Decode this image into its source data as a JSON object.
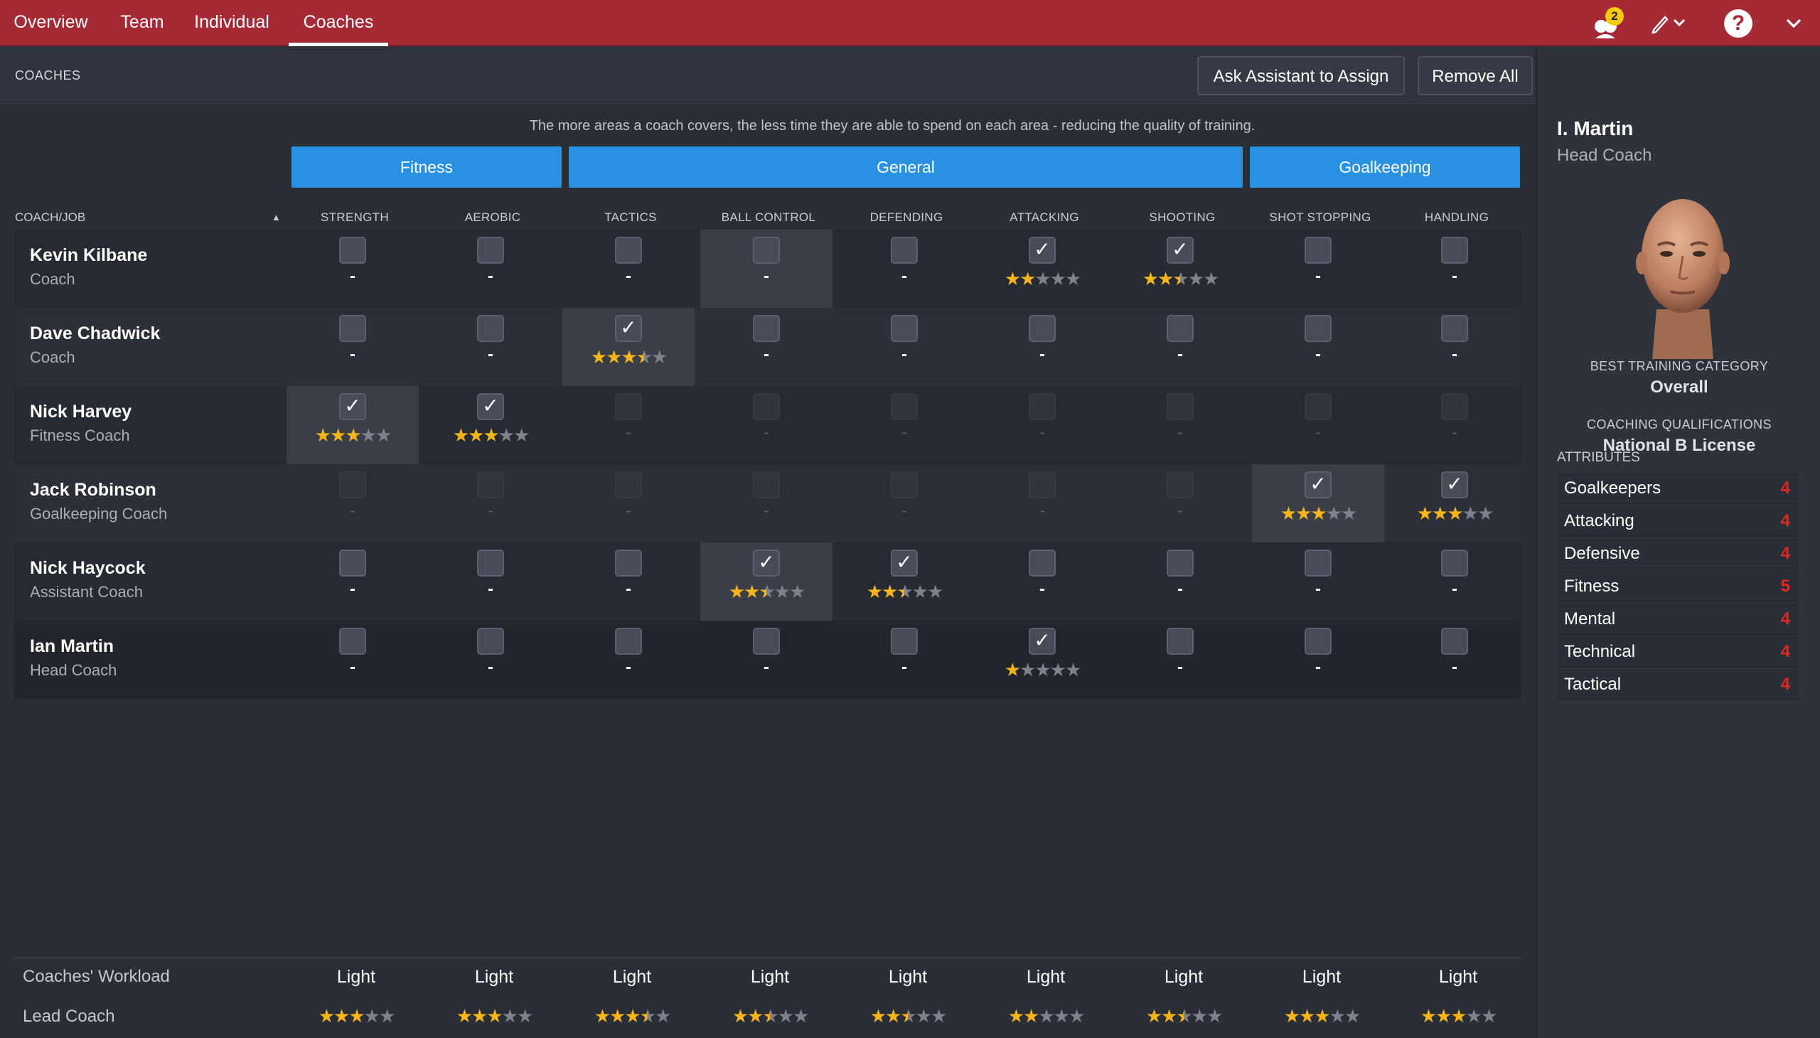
{
  "nav": {
    "tabs": [
      {
        "label": "Overview"
      },
      {
        "label": "Team"
      },
      {
        "label": "Individual"
      },
      {
        "label": "Coaches"
      }
    ],
    "active": "Coaches",
    "notification_count": "2"
  },
  "header": {
    "title": "COACHES",
    "ask_assistant_label": "Ask Assistant to Assign",
    "remove_all_label": "Remove All"
  },
  "notice": "The more areas a coach covers, the less time they are able to spend on each area - reducing the quality of training.",
  "groups": {
    "fitness": "Fitness",
    "general": "General",
    "goalkeeping": "Goalkeeping"
  },
  "table": {
    "coach_job_header": "COACH/JOB",
    "columns": [
      "STRENGTH",
      "AEROBIC",
      "TACTICS",
      "BALL CONTROL",
      "DEFENDING",
      "ATTACKING",
      "SHOOTING",
      "SHOT STOPPING",
      "HANDLING"
    ],
    "rows": [
      {
        "name": "Kevin Kilbane",
        "role": "Coach",
        "cells": [
          {
            "checked": false,
            "enabled": true,
            "stars": null,
            "dash": "-"
          },
          {
            "checked": false,
            "enabled": true,
            "stars": null,
            "dash": "-"
          },
          {
            "checked": false,
            "enabled": true,
            "stars": null,
            "dash": "-"
          },
          {
            "checked": false,
            "enabled": true,
            "stars": null,
            "dash": "-",
            "highlight": true
          },
          {
            "checked": false,
            "enabled": true,
            "stars": null,
            "dash": "-"
          },
          {
            "checked": true,
            "enabled": true,
            "stars": 2
          },
          {
            "checked": true,
            "enabled": true,
            "stars": 2.5
          },
          {
            "checked": false,
            "enabled": true,
            "stars": null,
            "dash": "-"
          },
          {
            "checked": false,
            "enabled": true,
            "stars": null,
            "dash": "-"
          }
        ]
      },
      {
        "name": "Dave Chadwick",
        "role": "Coach",
        "cells": [
          {
            "checked": false,
            "enabled": true,
            "stars": null,
            "dash": "-"
          },
          {
            "checked": false,
            "enabled": true,
            "stars": null,
            "dash": "-"
          },
          {
            "checked": true,
            "enabled": true,
            "stars": 3.5,
            "highlight": true
          },
          {
            "checked": false,
            "enabled": true,
            "stars": null,
            "dash": "-"
          },
          {
            "checked": false,
            "enabled": true,
            "stars": null,
            "dash": "-"
          },
          {
            "checked": false,
            "enabled": true,
            "stars": null,
            "dash": "-"
          },
          {
            "checked": false,
            "enabled": true,
            "stars": null,
            "dash": "-"
          },
          {
            "checked": false,
            "enabled": true,
            "stars": null,
            "dash": "-"
          },
          {
            "checked": false,
            "enabled": true,
            "stars": null,
            "dash": "-"
          }
        ]
      },
      {
        "name": "Nick Harvey",
        "role": "Fitness Coach",
        "cells": [
          {
            "checked": true,
            "enabled": true,
            "stars": 3,
            "highlight": true
          },
          {
            "checked": true,
            "enabled": true,
            "stars": 3
          },
          {
            "checked": false,
            "enabled": false,
            "stars": null,
            "dash": "-"
          },
          {
            "checked": false,
            "enabled": false,
            "stars": null,
            "dash": "-"
          },
          {
            "checked": false,
            "enabled": false,
            "stars": null,
            "dash": "-"
          },
          {
            "checked": false,
            "enabled": false,
            "stars": null,
            "dash": "-"
          },
          {
            "checked": false,
            "enabled": false,
            "stars": null,
            "dash": "-"
          },
          {
            "checked": false,
            "enabled": false,
            "stars": null,
            "dash": "-"
          },
          {
            "checked": false,
            "enabled": false,
            "stars": null,
            "dash": "-"
          }
        ]
      },
      {
        "name": "Jack Robinson",
        "role": "Goalkeeping Coach",
        "cells": [
          {
            "checked": false,
            "enabled": false,
            "stars": null,
            "dash": "-"
          },
          {
            "checked": false,
            "enabled": false,
            "stars": null,
            "dash": "-"
          },
          {
            "checked": false,
            "enabled": false,
            "stars": null,
            "dash": "-"
          },
          {
            "checked": false,
            "enabled": false,
            "stars": null,
            "dash": "-"
          },
          {
            "checked": false,
            "enabled": false,
            "stars": null,
            "dash": "-"
          },
          {
            "checked": false,
            "enabled": false,
            "stars": null,
            "dash": "-"
          },
          {
            "checked": false,
            "enabled": false,
            "stars": null,
            "dash": "-"
          },
          {
            "checked": true,
            "enabled": true,
            "stars": 3,
            "highlight": true
          },
          {
            "checked": true,
            "enabled": true,
            "stars": 3
          }
        ]
      },
      {
        "name": "Nick Haycock",
        "role": "Assistant Coach",
        "cells": [
          {
            "checked": false,
            "enabled": true,
            "stars": null,
            "dash": "-"
          },
          {
            "checked": false,
            "enabled": true,
            "stars": null,
            "dash": "-"
          },
          {
            "checked": false,
            "enabled": true,
            "stars": null,
            "dash": "-"
          },
          {
            "checked": true,
            "enabled": true,
            "stars": 2.5,
            "highlight": true
          },
          {
            "checked": true,
            "enabled": true,
            "stars": 2.5
          },
          {
            "checked": false,
            "enabled": true,
            "stars": null,
            "dash": "-"
          },
          {
            "checked": false,
            "enabled": true,
            "stars": null,
            "dash": "-"
          },
          {
            "checked": false,
            "enabled": true,
            "stars": null,
            "dash": "-"
          },
          {
            "checked": false,
            "enabled": true,
            "stars": null,
            "dash": "-"
          }
        ]
      },
      {
        "name": "Ian Martin",
        "role": "Head Coach",
        "cells": [
          {
            "checked": false,
            "enabled": true,
            "stars": null,
            "dash": "-"
          },
          {
            "checked": false,
            "enabled": true,
            "stars": null,
            "dash": "-"
          },
          {
            "checked": false,
            "enabled": true,
            "stars": null,
            "dash": "-"
          },
          {
            "checked": false,
            "enabled": true,
            "stars": null,
            "dash": "-"
          },
          {
            "checked": false,
            "enabled": true,
            "stars": null,
            "dash": "-"
          },
          {
            "checked": true,
            "enabled": true,
            "stars": 1
          },
          {
            "checked": false,
            "enabled": true,
            "stars": null,
            "dash": "-"
          },
          {
            "checked": false,
            "enabled": true,
            "stars": null,
            "dash": "-"
          },
          {
            "checked": false,
            "enabled": true,
            "stars": null,
            "dash": "-"
          }
        ]
      }
    ]
  },
  "footer": {
    "workload_label": "Coaches' Workload",
    "workload": [
      "Light",
      "Light",
      "Light",
      "Light",
      "Light",
      "Light",
      "Light",
      "Light",
      "Light"
    ],
    "lead_label": "Lead Coach",
    "lead_stars": [
      3,
      3,
      3.5,
      2.5,
      2.5,
      2,
      2.5,
      3,
      3
    ]
  },
  "sidebar": {
    "name": "I. Martin",
    "role": "Head Coach",
    "best_category_label": "BEST TRAINING CATEGORY",
    "best_category_value": "Overall",
    "qualifications_label": "COACHING QUALIFICATIONS",
    "qualifications_value": "National B License",
    "attributes_label": "ATTRIBUTES",
    "attributes": [
      {
        "name": "Goalkeepers",
        "value": "4"
      },
      {
        "name": "Attacking",
        "value": "4"
      },
      {
        "name": "Defensive",
        "value": "4"
      },
      {
        "name": "Fitness",
        "value": "5"
      },
      {
        "name": "Mental",
        "value": "4"
      },
      {
        "name": "Technical",
        "value": "4"
      },
      {
        "name": "Tactical",
        "value": "4"
      }
    ]
  },
  "colors": {
    "topbar": "#a52a35",
    "group_blue": "#2891e1",
    "star": "#f6b519",
    "attribute_value": "#e42626"
  }
}
